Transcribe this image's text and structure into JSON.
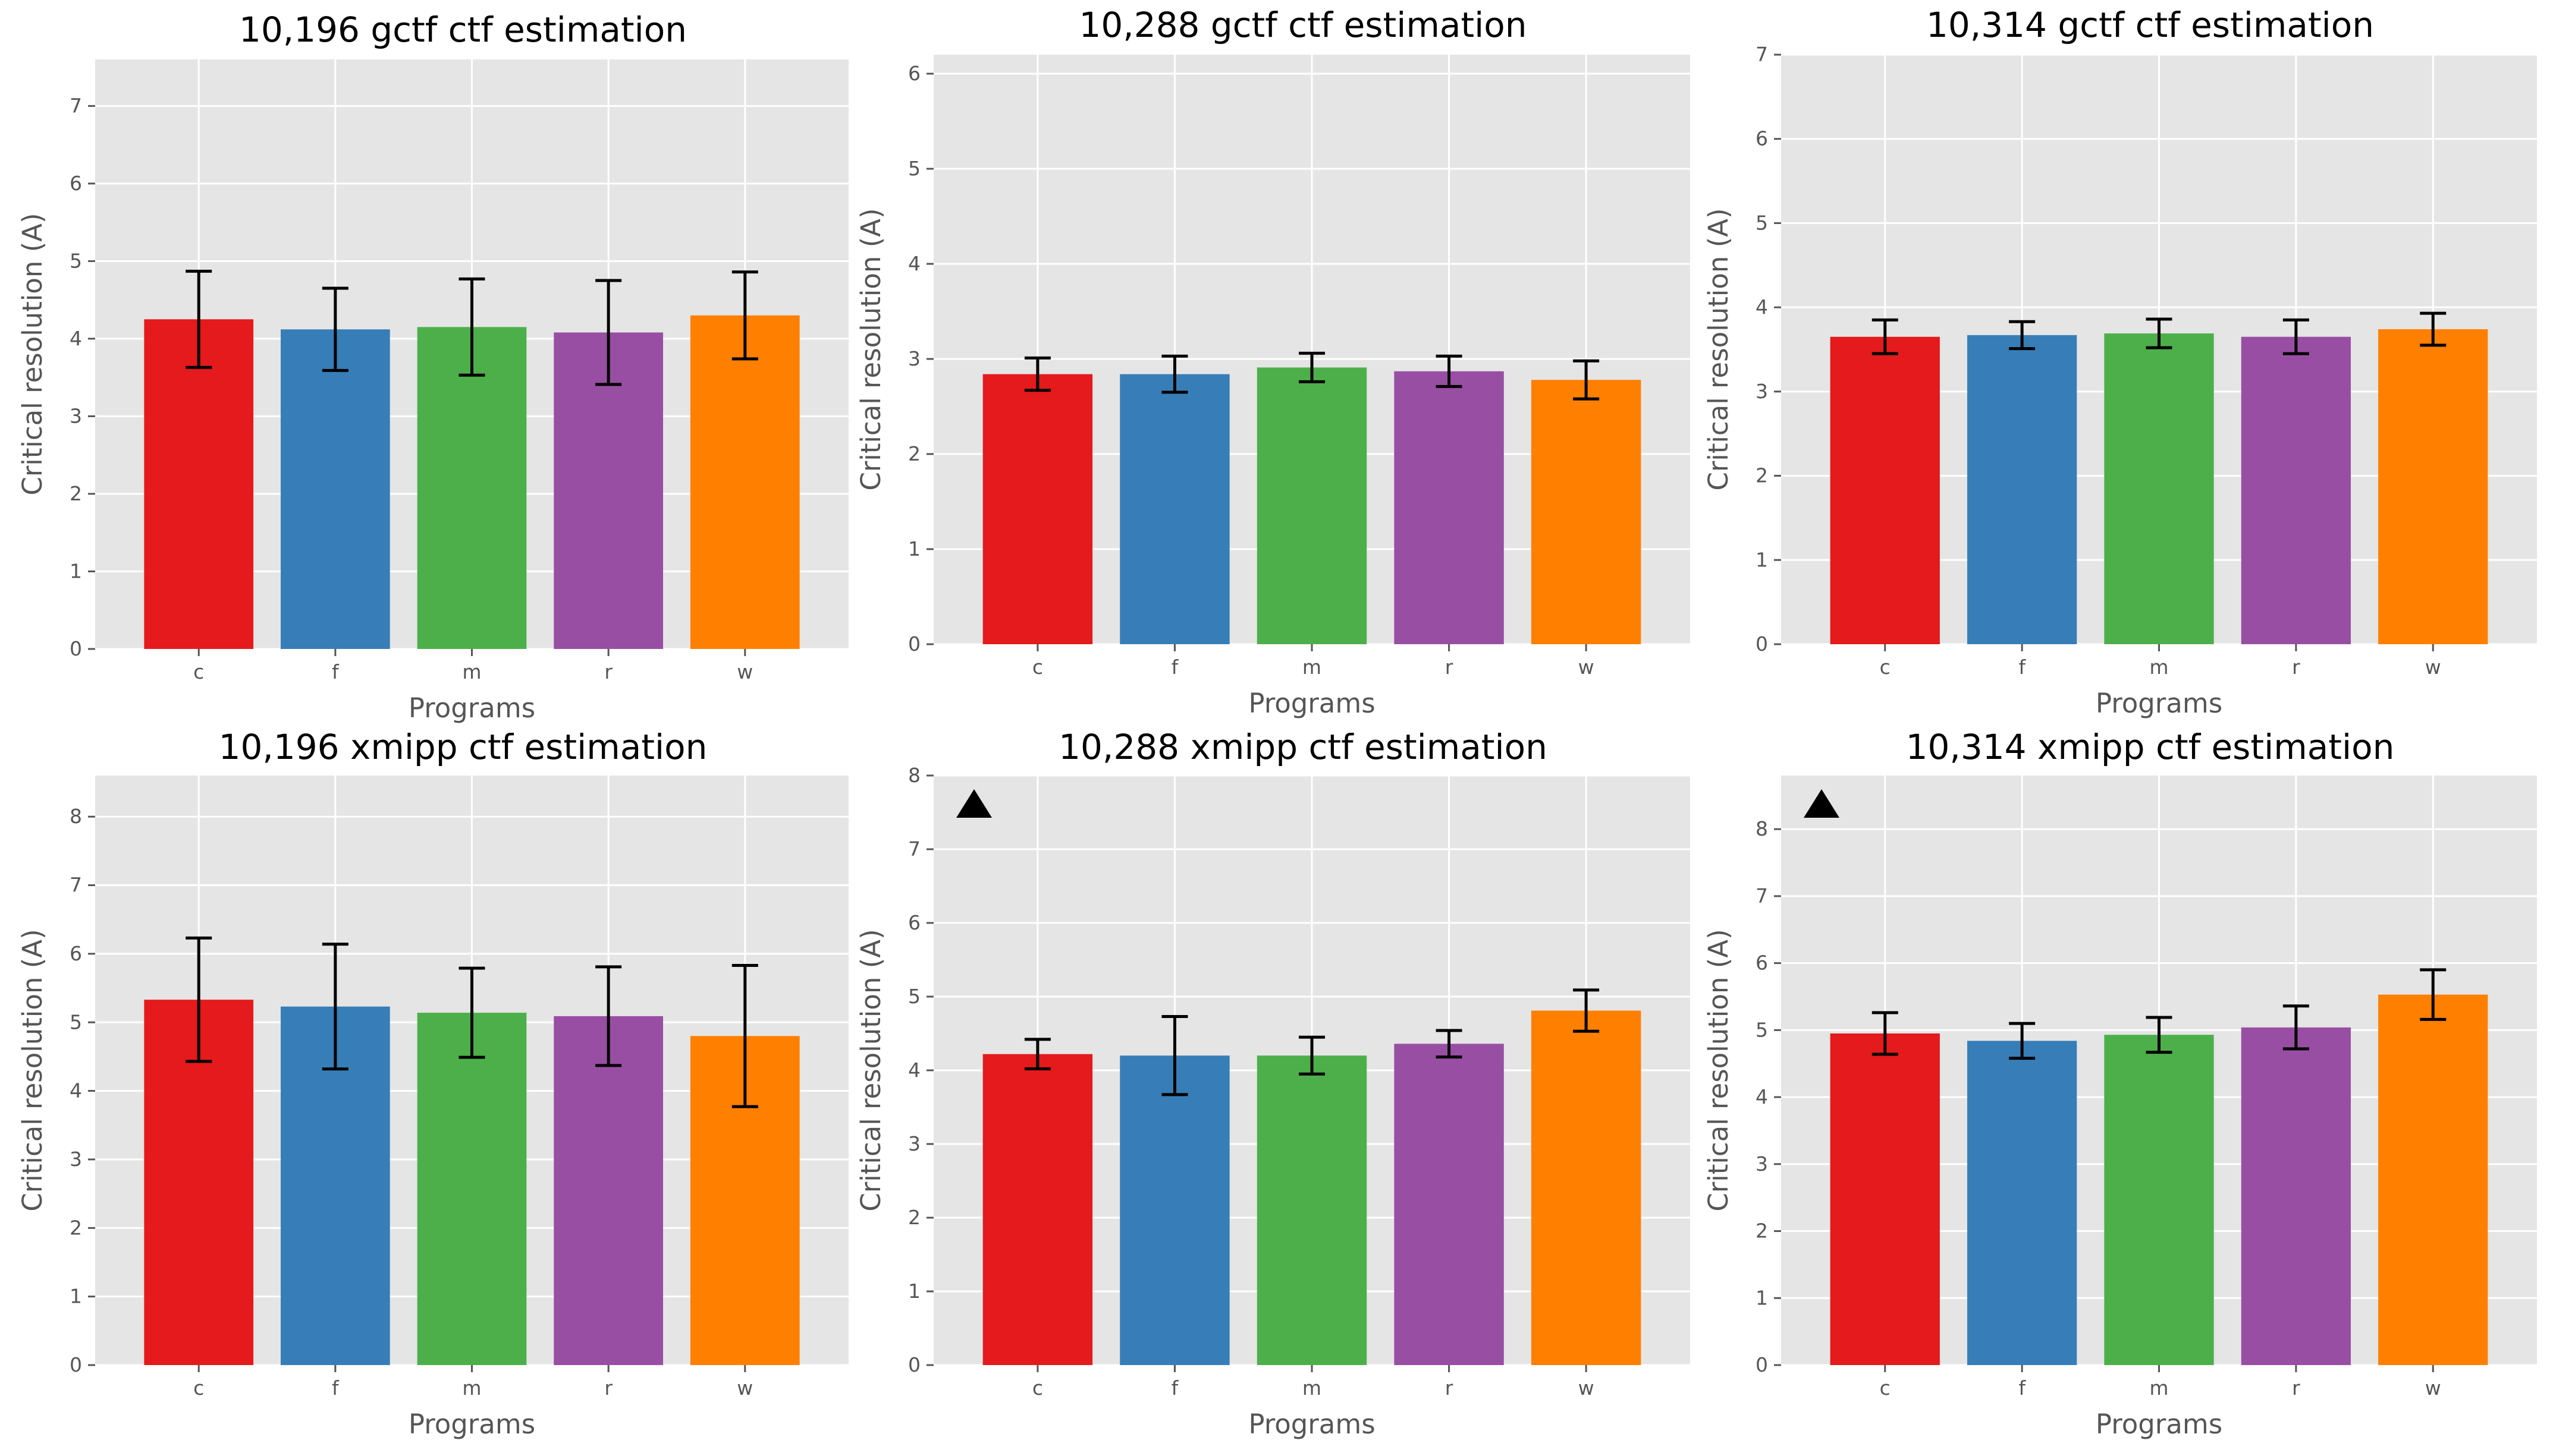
{
  "figure": {
    "xlabel": "Programs",
    "ylabel": "Critical resolution (A)"
  },
  "colors": {
    "c": "#e41a1c",
    "f": "#377eb8",
    "m": "#4daf4a",
    "r": "#984ea3",
    "w": "#ff7f00",
    "plot_bg": "#e5e5e5",
    "grid": "#ffffff",
    "marker": "#000000"
  },
  "chart_data": [
    {
      "type": "bar",
      "title": "10,196 gctf ctf estimation",
      "xlabel": "Programs",
      "ylabel": "Critical resolution (A)",
      "categories": [
        "c",
        "f",
        "m",
        "r",
        "w"
      ],
      "values": [
        4.25,
        4.12,
        4.15,
        4.08,
        4.3
      ],
      "errors": [
        0.62,
        0.53,
        0.62,
        0.67,
        0.56
      ],
      "ylim": [
        0,
        7.6
      ],
      "yticks": [
        0,
        1,
        2,
        3,
        4,
        5,
        6,
        7
      ],
      "marker": ""
    },
    {
      "type": "bar",
      "title": "10,288 gctf ctf estimation",
      "xlabel": "Programs",
      "ylabel": "Critical resolution (A)",
      "categories": [
        "c",
        "f",
        "m",
        "r",
        "w"
      ],
      "values": [
        2.84,
        2.84,
        2.91,
        2.87,
        2.78
      ],
      "errors": [
        0.17,
        0.19,
        0.15,
        0.16,
        0.2
      ],
      "ylim": [
        0,
        6.2
      ],
      "yticks": [
        0,
        1,
        2,
        3,
        4,
        5,
        6
      ],
      "marker": ""
    },
    {
      "type": "bar",
      "title": "10,314 gctf ctf estimation",
      "xlabel": "Programs",
      "ylabel": "Critical resolution (A)",
      "categories": [
        "c",
        "f",
        "m",
        "r",
        "w"
      ],
      "values": [
        3.65,
        3.67,
        3.69,
        3.65,
        3.74
      ],
      "errors": [
        0.2,
        0.16,
        0.17,
        0.2,
        0.19
      ],
      "ylim": [
        0,
        7.0
      ],
      "yticks": [
        0,
        1,
        2,
        3,
        4,
        5,
        6,
        7
      ],
      "marker": ""
    },
    {
      "type": "bar",
      "title": "10,196 xmipp ctf estimation",
      "xlabel": "Programs",
      "ylabel": "Critical resolution (A)",
      "categories": [
        "c",
        "f",
        "m",
        "r",
        "w"
      ],
      "values": [
        5.33,
        5.23,
        5.14,
        5.09,
        4.8
      ],
      "errors": [
        0.9,
        0.91,
        0.65,
        0.72,
        1.03
      ],
      "ylim": [
        0,
        8.6
      ],
      "yticks": [
        0,
        1,
        2,
        3,
        4,
        5,
        6,
        7,
        8
      ],
      "marker": ""
    },
    {
      "type": "bar",
      "title": "10,288 xmipp ctf estimation",
      "xlabel": "Programs",
      "ylabel": "Critical resolution (A)",
      "categories": [
        "c",
        "f",
        "m",
        "r",
        "w"
      ],
      "values": [
        4.22,
        4.2,
        4.2,
        4.36,
        4.81
      ],
      "errors": [
        0.2,
        0.53,
        0.25,
        0.18,
        0.28
      ],
      "ylim": [
        0,
        8.0
      ],
      "yticks": [
        0,
        1,
        2,
        3,
        4,
        5,
        6,
        7,
        8
      ],
      "marker": "▲"
    },
    {
      "type": "bar",
      "title": "10,314 xmipp ctf estimation",
      "xlabel": "Programs",
      "ylabel": "Critical resolution (A)",
      "categories": [
        "c",
        "f",
        "m",
        "r",
        "w"
      ],
      "values": [
        4.95,
        4.84,
        4.93,
        5.04,
        5.53
      ],
      "errors": [
        0.31,
        0.26,
        0.26,
        0.32,
        0.37
      ],
      "ylim": [
        0,
        8.8
      ],
      "yticks": [
        0,
        1,
        2,
        3,
        4,
        5,
        6,
        7,
        8
      ],
      "marker": "▲"
    }
  ]
}
